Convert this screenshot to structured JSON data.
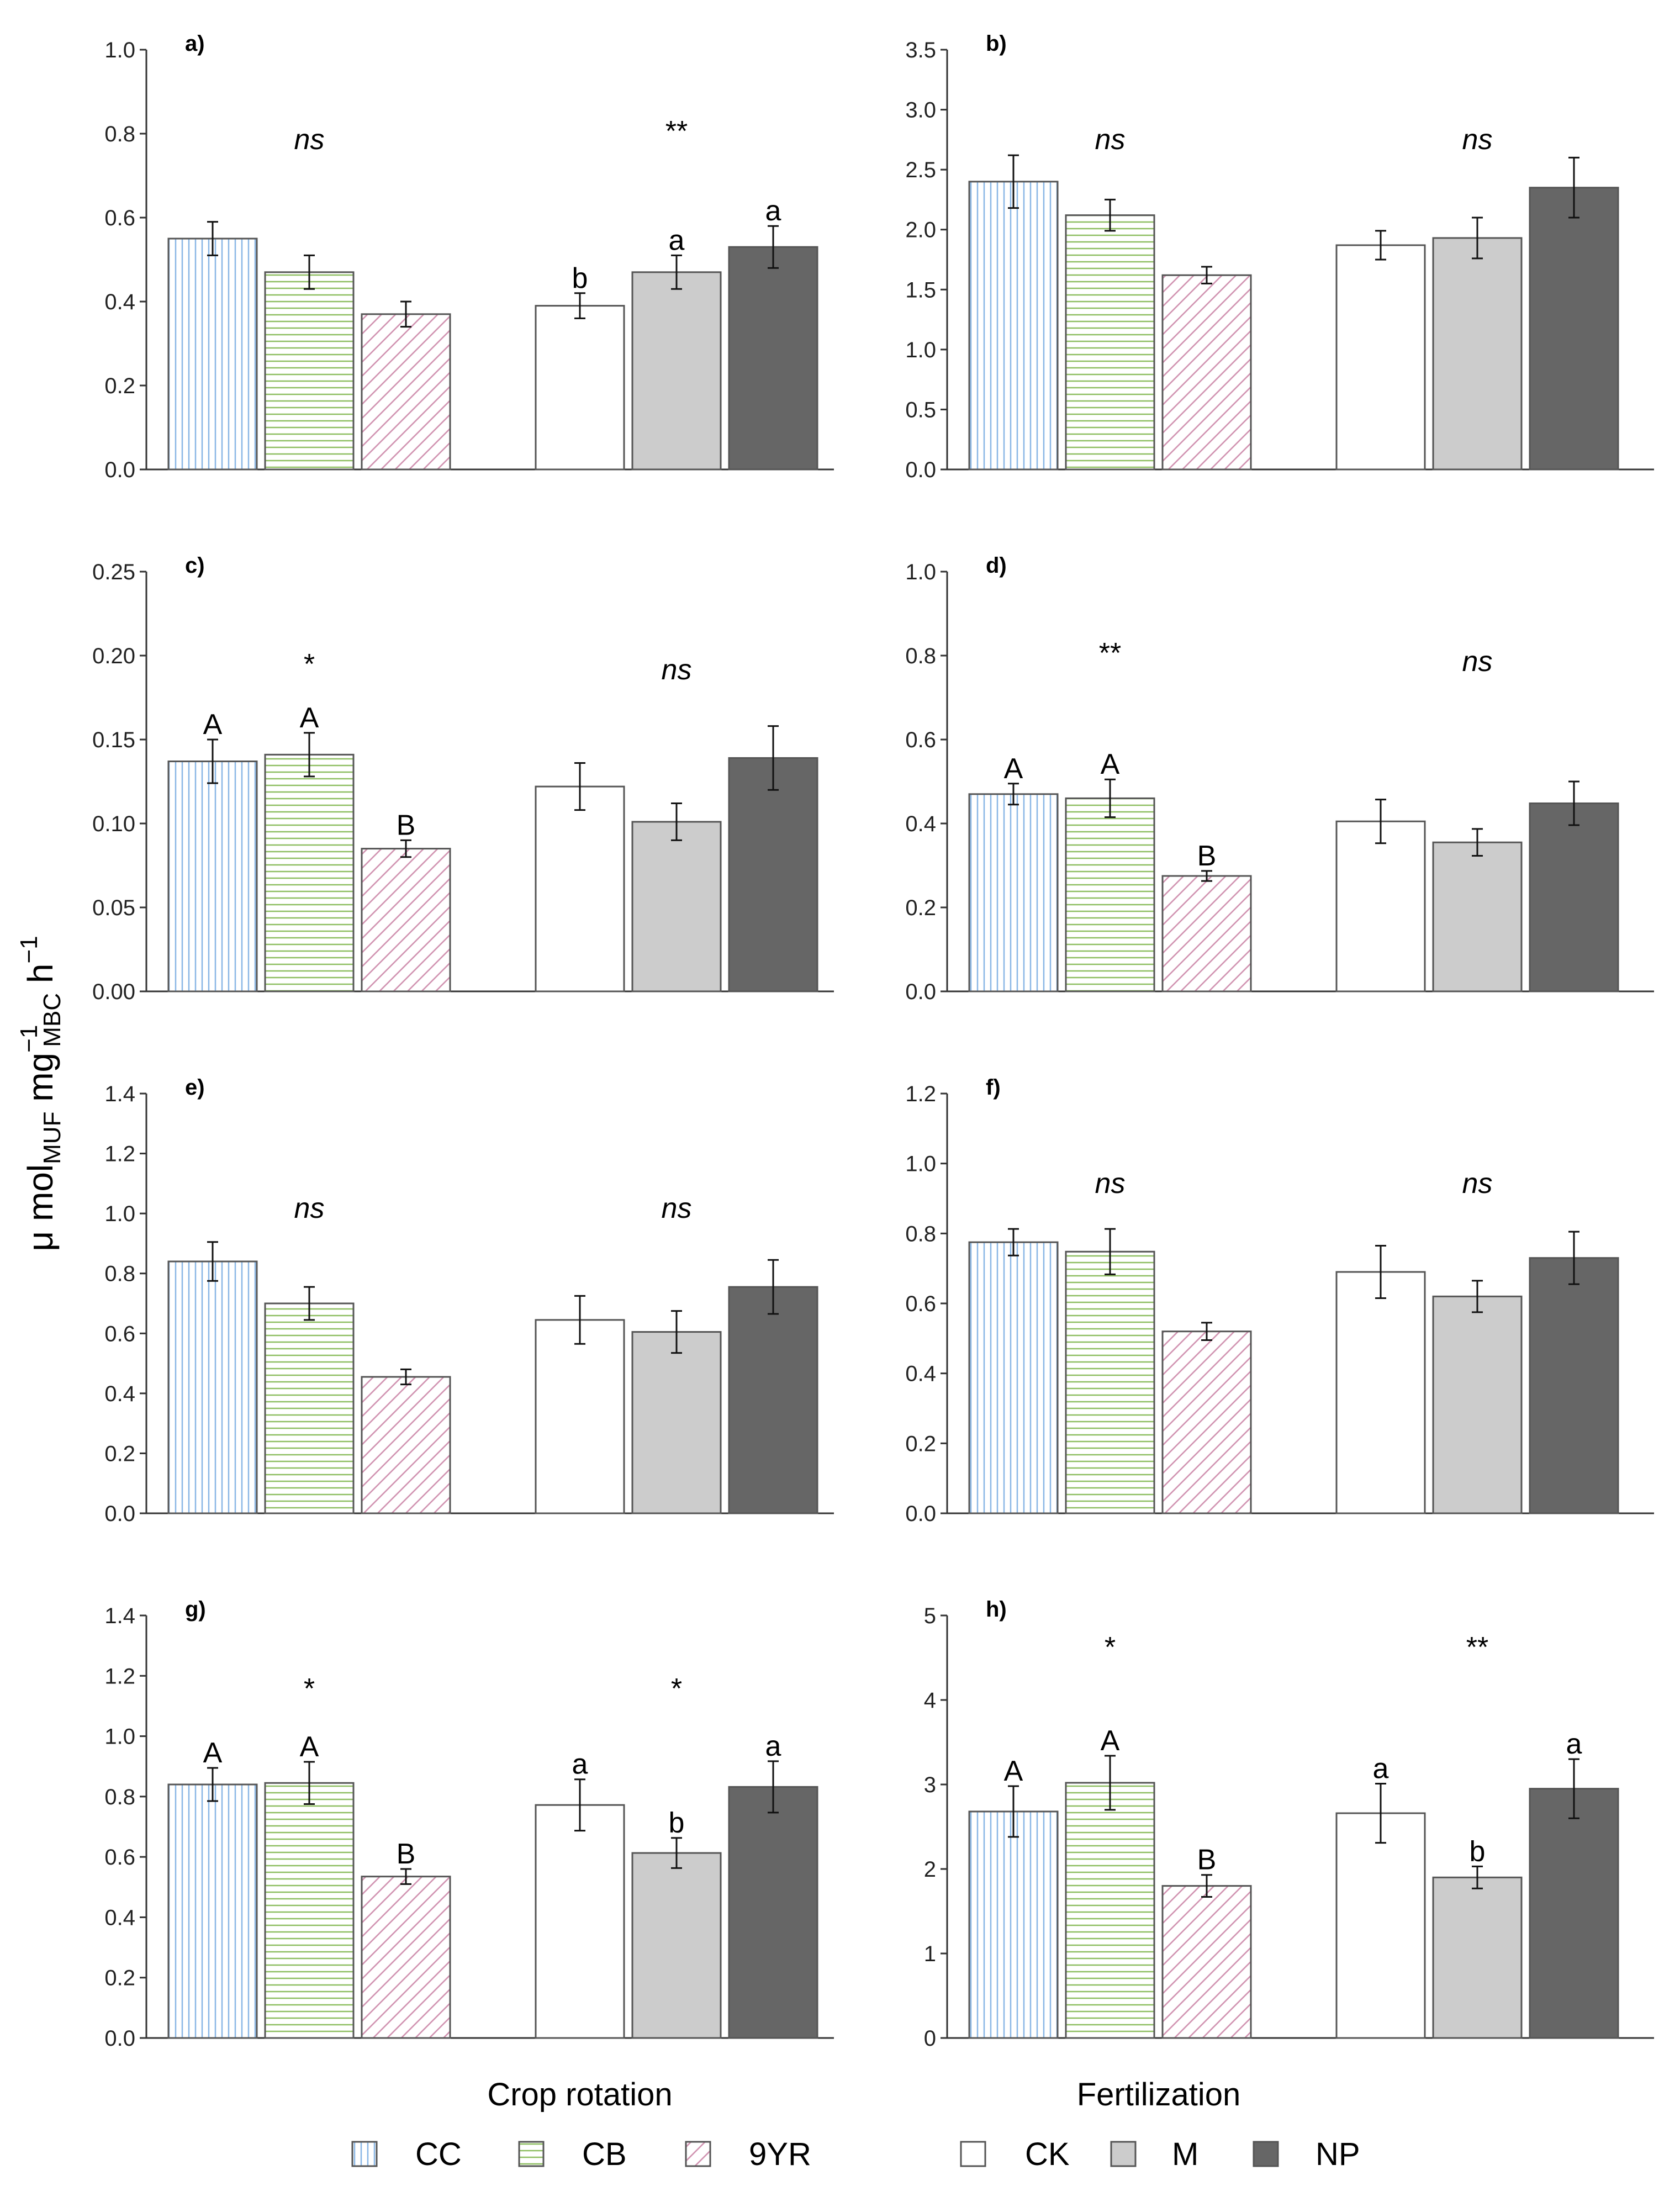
{
  "chart_data": {
    "type": "bar",
    "ylabel": {
      "prefix": "μ mol",
      "sub1": "MUF",
      "mid": " mg",
      "sup1": "−1",
      "sub2": "MBC",
      "end": " h",
      "sup2": "−1"
    },
    "xlabels": [
      "Crop rotation",
      "Fertilization"
    ],
    "legend": [
      {
        "name": "CC",
        "style": "vertical"
      },
      {
        "name": "CB",
        "style": "horizontal"
      },
      {
        "name": "9YR",
        "style": "diagonal"
      },
      {
        "name": "CK",
        "style": "white"
      },
      {
        "name": "M",
        "style": "lightgray"
      },
      {
        "name": "NP",
        "style": "darkgray"
      }
    ],
    "colors": {
      "CC": "#8ab7e6",
      "CB": "#8fbf63",
      "9YR": "#cf8fae",
      "CK": "#ffffff",
      "M": "#cccccc",
      "NP": "#666666",
      "outline": "#555555",
      "axis": "#333333"
    },
    "panels": [
      {
        "label": "a)",
        "ylim": [
          0,
          1.0
        ],
        "ticks": [
          "0.0",
          "0.2",
          "0.4",
          "0.6",
          "0.8",
          "1.0"
        ],
        "crop": {
          "sig": "ns",
          "sig_italic": true,
          "values": [
            0.55,
            0.47,
            0.37
          ],
          "errors": [
            0.04,
            0.04,
            0.03
          ],
          "letters": [
            "",
            "",
            ""
          ]
        },
        "fert": {
          "sig": "**",
          "sig_italic": false,
          "values": [
            0.39,
            0.47,
            0.53
          ],
          "errors": [
            0.03,
            0.04,
            0.05
          ],
          "letters": [
            "b",
            "a",
            "a"
          ]
        }
      },
      {
        "label": "b)",
        "ylim": [
          0,
          3.5
        ],
        "ticks": [
          "0.0",
          "0.5",
          "1.0",
          "1.5",
          "2.0",
          "2.5",
          "3.0",
          "3.5"
        ],
        "crop": {
          "sig": "ns",
          "sig_italic": true,
          "values": [
            2.4,
            2.12,
            1.62
          ],
          "errors": [
            0.22,
            0.13,
            0.07
          ],
          "letters": [
            "",
            "",
            ""
          ]
        },
        "fert": {
          "sig": "ns",
          "sig_italic": true,
          "values": [
            1.87,
            1.93,
            2.35
          ],
          "errors": [
            0.12,
            0.17,
            0.25
          ],
          "letters": [
            "",
            "",
            ""
          ]
        }
      },
      {
        "label": "c)",
        "ylim": [
          0,
          0.25
        ],
        "ticks": [
          "0.00",
          "0.05",
          "0.10",
          "0.15",
          "0.20",
          "0.25"
        ],
        "crop": {
          "sig": "*",
          "sig_italic": false,
          "values": [
            0.137,
            0.141,
            0.085
          ],
          "errors": [
            0.013,
            0.013,
            0.005
          ],
          "letters": [
            "A",
            "A",
            "B"
          ]
        },
        "fert": {
          "sig": "ns",
          "sig_italic": true,
          "values": [
            0.122,
            0.101,
            0.139
          ],
          "errors": [
            0.014,
            0.011,
            0.019
          ],
          "letters": [
            "",
            "",
            ""
          ]
        }
      },
      {
        "label": "d)",
        "ylim": [
          0,
          1.0
        ],
        "ticks": [
          "0.0",
          "0.2",
          "0.4",
          "0.6",
          "0.8",
          "1.0"
        ],
        "crop": {
          "sig": "**",
          "sig_italic": false,
          "values": [
            0.47,
            0.46,
            0.275
          ],
          "errors": [
            0.025,
            0.045,
            0.012
          ],
          "letters": [
            "A",
            "A",
            "B"
          ]
        },
        "fert": {
          "sig": "ns",
          "sig_italic": true,
          "values": [
            0.405,
            0.355,
            0.448
          ],
          "errors": [
            0.052,
            0.032,
            0.052
          ],
          "letters": [
            "",
            "",
            ""
          ]
        }
      },
      {
        "label": "e)",
        "ylim": [
          0,
          1.4
        ],
        "ticks": [
          "0.0",
          "0.2",
          "0.4",
          "0.6",
          "0.8",
          "1.0",
          "1.2",
          "1.4"
        ],
        "crop": {
          "sig": "ns",
          "sig_italic": true,
          "values": [
            0.84,
            0.7,
            0.455
          ],
          "errors": [
            0.065,
            0.055,
            0.025
          ],
          "letters": [
            "",
            "",
            ""
          ]
        },
        "fert": {
          "sig": "ns",
          "sig_italic": true,
          "values": [
            0.645,
            0.605,
            0.755
          ],
          "errors": [
            0.08,
            0.07,
            0.09
          ],
          "letters": [
            "",
            "",
            ""
          ]
        }
      },
      {
        "label": "f)",
        "ylim": [
          0,
          1.2
        ],
        "ticks": [
          "0.0",
          "0.2",
          "0.4",
          "0.6",
          "0.8",
          "1.0",
          "1.2"
        ],
        "crop": {
          "sig": "ns",
          "sig_italic": true,
          "values": [
            0.775,
            0.748,
            0.52
          ],
          "errors": [
            0.038,
            0.065,
            0.025
          ],
          "letters": [
            "",
            "",
            ""
          ]
        },
        "fert": {
          "sig": "ns",
          "sig_italic": true,
          "values": [
            0.69,
            0.62,
            0.73
          ],
          "errors": [
            0.075,
            0.045,
            0.075
          ],
          "letters": [
            "",
            "",
            ""
          ]
        }
      },
      {
        "label": "g)",
        "ylim": [
          0,
          1.4
        ],
        "ticks": [
          "0.0",
          "0.2",
          "0.4",
          "0.6",
          "0.8",
          "1.0",
          "1.2",
          "1.4"
        ],
        "crop": {
          "sig": "*",
          "sig_italic": false,
          "values": [
            0.84,
            0.845,
            0.535
          ],
          "errors": [
            0.055,
            0.07,
            0.025
          ],
          "letters": [
            "A",
            "A",
            "B"
          ]
        },
        "fert": {
          "sig": "*",
          "sig_italic": false,
          "values": [
            0.772,
            0.613,
            0.832
          ],
          "errors": [
            0.085,
            0.05,
            0.085
          ],
          "letters": [
            "a",
            "b",
            "a"
          ]
        }
      },
      {
        "label": "h)",
        "ylim": [
          0,
          5
        ],
        "ticks": [
          "0",
          "1",
          "2",
          "3",
          "4",
          "5"
        ],
        "crop": {
          "sig": "*",
          "sig_italic": false,
          "values": [
            2.68,
            3.02,
            1.8
          ],
          "errors": [
            0.3,
            0.32,
            0.13
          ],
          "letters": [
            "A",
            "A",
            "B"
          ]
        },
        "fert": {
          "sig": "**",
          "sig_italic": false,
          "values": [
            2.66,
            1.9,
            2.95
          ],
          "errors": [
            0.35,
            0.13,
            0.35
          ],
          "letters": [
            "a",
            "b",
            "a"
          ]
        }
      }
    ]
  }
}
